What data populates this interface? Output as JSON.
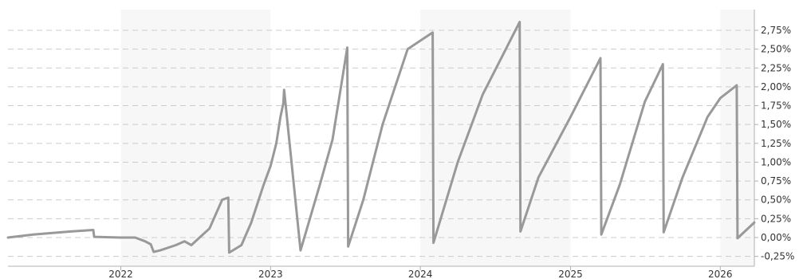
{
  "chart_data": {
    "type": "line",
    "title": "",
    "xlabel": "",
    "ylabel": "",
    "y_unit": "%",
    "ylim": [
      -0.3,
      3.0
    ],
    "yticks": [
      -0.25,
      0.0,
      0.25,
      0.5,
      0.75,
      1.0,
      1.25,
      1.5,
      1.75,
      2.0,
      2.25,
      2.5,
      2.75
    ],
    "ytick_labels": [
      "-0,25%",
      "0,00%",
      "0,25%",
      "0,50%",
      "0,75%",
      "1,00%",
      "1,25%",
      "1,50%",
      "1,75%",
      "2,00%",
      "2,25%",
      "2,50%",
      "2,75%"
    ],
    "xlim": [
      "2021-04-01",
      "2026-03-25"
    ],
    "xtick_dates": [
      "2022-01-01",
      "2023-01-01",
      "2024-01-01",
      "2025-01-01",
      "2026-01-01"
    ],
    "xtick_labels": [
      "2022",
      "2023",
      "2024",
      "2025",
      "2026"
    ],
    "year_shading": [
      "2022",
      "2024",
      "2026"
    ],
    "grid": "horizontal dashed",
    "y_axis_position": "right",
    "series_color": "#999999",
    "series": [
      {
        "x": [
          "2021-04-01",
          "2021-06-01",
          "2021-09-01",
          "2021-10-26",
          "2021-10-28",
          "2021-12-31",
          "2022-02-05",
          "2022-03-01",
          "2022-03-15",
          "2022-03-22",
          "2022-04-07",
          "2022-05-15",
          "2022-06-05",
          "2022-06-22",
          "2022-07-08",
          "2022-08-05",
          "2022-09-05",
          "2022-09-20",
          "2022-09-22",
          "2022-10-22",
          "2022-11-15",
          "2022-12-15",
          "2023-01-01",
          "2023-01-15",
          "2023-01-25",
          "2023-02-01",
          "2023-02-03",
          "2023-03-15",
          "2023-05-01",
          "2023-06-01",
          "2023-07-07",
          "2023-07-09",
          "2023-08-15",
          "2023-10-01",
          "2023-12-01",
          "2024-01-31",
          "2024-02-02",
          "2024-04-01",
          "2024-06-01",
          "2024-08-30",
          "2024-09-01",
          "2024-10-15",
          "2025-01-01",
          "2025-03-15",
          "2025-03-17",
          "2025-05-01",
          "2025-07-01",
          "2025-08-14",
          "2025-08-16",
          "2025-10-01",
          "2025-12-01",
          "2026-01-01",
          "2026-02-10",
          "2026-02-12",
          "2026-03-25"
        ],
        "y": [
          0.0,
          0.04,
          0.08,
          0.1,
          0.01,
          0.0,
          0.0,
          -0.05,
          -0.09,
          -0.19,
          -0.17,
          -0.1,
          -0.05,
          -0.1,
          -0.02,
          0.12,
          0.5,
          0.53,
          -0.2,
          -0.1,
          0.2,
          0.7,
          0.95,
          1.25,
          1.6,
          1.78,
          1.96,
          -0.17,
          0.7,
          1.3,
          2.52,
          -0.12,
          0.5,
          1.5,
          2.5,
          2.72,
          -0.07,
          1.0,
          1.9,
          2.86,
          0.08,
          0.8,
          1.6,
          2.38,
          0.04,
          0.7,
          1.8,
          2.3,
          0.07,
          0.8,
          1.6,
          1.85,
          2.02,
          -0.01,
          0.2
        ]
      }
    ]
  }
}
